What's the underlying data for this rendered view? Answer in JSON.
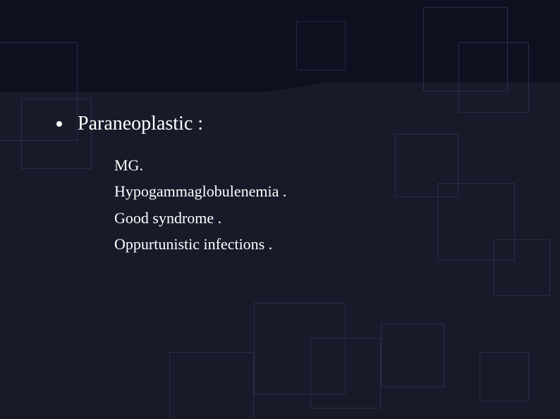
{
  "slide": {
    "background_color": "#181a2a",
    "header_band_color": "#0e1020",
    "decor_square_border": "#2a2d44",
    "text_color": "#ffffff",
    "heading": {
      "text": "Paraneoplastic :",
      "font_size_pt": 21,
      "bullet_shape": "disc"
    },
    "subitems": [
      "MG.",
      "Hypogammaglobulenemia .",
      "Good syndrome .",
      "Oppurtunistic infections ."
    ],
    "subitem_font_size_pt": 17,
    "font_family": "serif"
  }
}
